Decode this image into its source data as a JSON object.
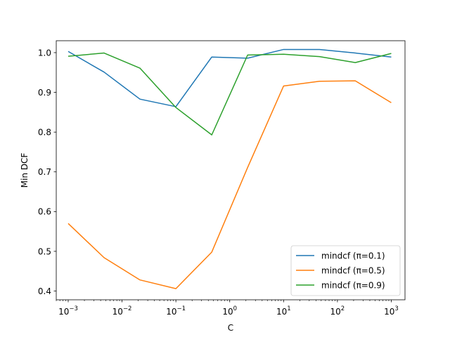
{
  "chart_data": {
    "type": "line",
    "xlabel": "C",
    "ylabel": "Min DCF",
    "xscale": "log",
    "xlim": [
      0.0006,
      1800
    ],
    "ylim": [
      0.378,
      1.03
    ],
    "grid": false,
    "legend_position": "lower right",
    "x": [
      0.001,
      0.00464,
      0.0215,
      0.1,
      0.464,
      2.15,
      10,
      46.4,
      215,
      1000
    ],
    "xticks": [
      0.001,
      0.01,
      0.1,
      1,
      10,
      100,
      1000
    ],
    "xtick_labels": [
      "10^-3",
      "10^-2",
      "10^-1",
      "10^0",
      "10^1",
      "10^2",
      "10^3"
    ],
    "yticks": [
      0.4,
      0.5,
      0.6,
      0.7,
      0.8,
      0.9,
      1.0
    ],
    "ytick_labels": [
      "0.4",
      "0.5",
      "0.6",
      "0.7",
      "0.8",
      "0.9",
      "1.0"
    ],
    "series": [
      {
        "name": "mindcf (π=0.1)",
        "color": "#1f77b4",
        "values": [
          1.003,
          0.951,
          0.883,
          0.864,
          0.989,
          0.986,
          1.008,
          1.008,
          0.999,
          0.989
        ]
      },
      {
        "name": "mindcf (π=0.5)",
        "color": "#ff7f0e",
        "values": [
          0.57,
          0.484,
          0.428,
          0.406,
          0.498,
          0.711,
          0.916,
          0.928,
          0.929,
          0.874
        ]
      },
      {
        "name": "mindcf (π=0.9)",
        "color": "#2ca02c",
        "values": [
          0.991,
          0.999,
          0.961,
          0.862,
          0.793,
          0.994,
          0.996,
          0.99,
          0.975,
          0.998
        ]
      }
    ]
  }
}
